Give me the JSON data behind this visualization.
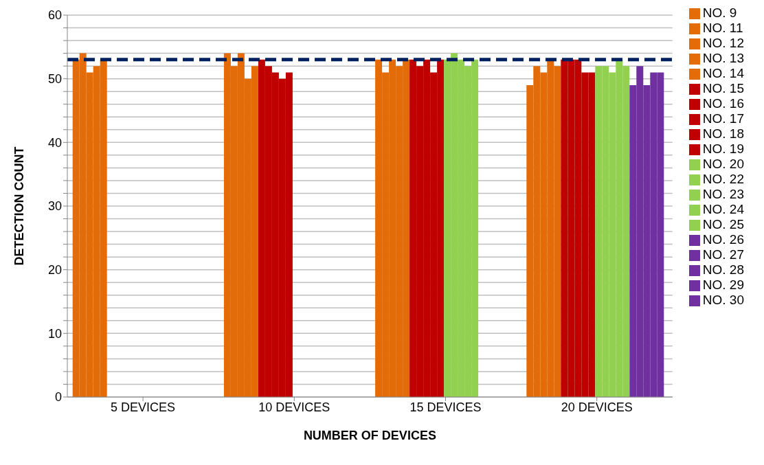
{
  "chart_data": {
    "type": "bar",
    "xlabel": "NUMBER OF DEVICES",
    "ylabel": "DETECTION COUNT",
    "categories": [
      "5 DEVICES",
      "10 DEVICES",
      "15 DEVICES",
      "20 DEVICES"
    ],
    "ylim": [
      0,
      60
    ],
    "yticks": [
      0,
      {
        "value": 2,
        "label": null
      },
      {
        "value": 4,
        "label": null
      },
      {
        "value": 6,
        "label": null
      },
      {
        "value": 8,
        "label": null
      },
      10,
      {
        "value": 12,
        "label": null
      },
      {
        "value": 14,
        "label": null
      },
      {
        "value": 16,
        "label": null
      },
      {
        "value": 18,
        "label": null
      },
      20,
      {
        "value": 22,
        "label": null
      },
      {
        "value": 24,
        "label": null
      },
      {
        "value": 26,
        "label": null
      },
      {
        "value": 28,
        "label": null
      },
      30,
      {
        "value": 32,
        "label": null
      },
      {
        "value": 34,
        "label": null
      },
      {
        "value": 36,
        "label": null
      },
      {
        "value": 38,
        "label": null
      },
      40,
      {
        "value": 42,
        "label": null
      },
      {
        "value": 44,
        "label": null
      },
      {
        "value": 46,
        "label": null
      },
      {
        "value": 48,
        "label": null
      },
      50,
      {
        "value": 52,
        "label": null
      },
      {
        "value": 54,
        "label": null
      },
      {
        "value": 56,
        "label": null
      },
      {
        "value": 58,
        "label": null
      },
      60
    ],
    "grid": "y",
    "legend": "right",
    "ref_lines": [
      {
        "axis": "y",
        "value": 53,
        "color": "#002060",
        "line_style": "dashed"
      }
    ],
    "series": [
      {
        "name": "NO. 9",
        "color": "#e36c09",
        "values": [
          53,
          54,
          53,
          49
        ]
      },
      {
        "name": "NO. 11",
        "color": "#e36c09",
        "values": [
          54,
          52,
          51,
          52
        ]
      },
      {
        "name": "NO. 12",
        "color": "#e36c09",
        "values": [
          51,
          54,
          53,
          51
        ]
      },
      {
        "name": "NO. 13",
        "color": "#e36c09",
        "values": [
          52,
          50,
          52,
          53
        ]
      },
      {
        "name": "NO. 14",
        "color": "#e36c09",
        "values": [
          53,
          52,
          53,
          52
        ]
      },
      {
        "name": "NO. 15",
        "color": "#c00000",
        "values": [
          null,
          53,
          53,
          53
        ]
      },
      {
        "name": "NO. 16",
        "color": "#c00000",
        "values": [
          null,
          52,
          52,
          53
        ]
      },
      {
        "name": "NO. 17",
        "color": "#c00000",
        "values": [
          null,
          51,
          53,
          53
        ]
      },
      {
        "name": "NO. 18",
        "color": "#c00000",
        "values": [
          null,
          50,
          51,
          51
        ]
      },
      {
        "name": "NO. 19",
        "color": "#c00000",
        "values": [
          null,
          51,
          53,
          51
        ]
      },
      {
        "name": "NO. 20",
        "color": "#92d050",
        "values": [
          null,
          null,
          53,
          52
        ]
      },
      {
        "name": "NO. 22",
        "color": "#92d050",
        "values": [
          null,
          null,
          54,
          52
        ]
      },
      {
        "name": "NO. 23",
        "color": "#92d050",
        "values": [
          null,
          null,
          53,
          51
        ]
      },
      {
        "name": "NO. 24",
        "color": "#92d050",
        "values": [
          null,
          null,
          52,
          53
        ]
      },
      {
        "name": "NO. 25",
        "color": "#92d050",
        "values": [
          null,
          null,
          53,
          52
        ]
      },
      {
        "name": "NO. 26",
        "color": "#7030a0",
        "values": [
          null,
          null,
          null,
          49
        ]
      },
      {
        "name": "NO. 27",
        "color": "#7030a0",
        "values": [
          null,
          null,
          null,
          52
        ]
      },
      {
        "name": "NO. 28",
        "color": "#7030a0",
        "values": [
          null,
          null,
          null,
          49
        ]
      },
      {
        "name": "NO. 29",
        "color": "#7030a0",
        "values": [
          null,
          null,
          null,
          51
        ]
      },
      {
        "name": "NO. 30",
        "color": "#7030a0",
        "values": [
          null,
          null,
          null,
          51
        ]
      }
    ]
  }
}
